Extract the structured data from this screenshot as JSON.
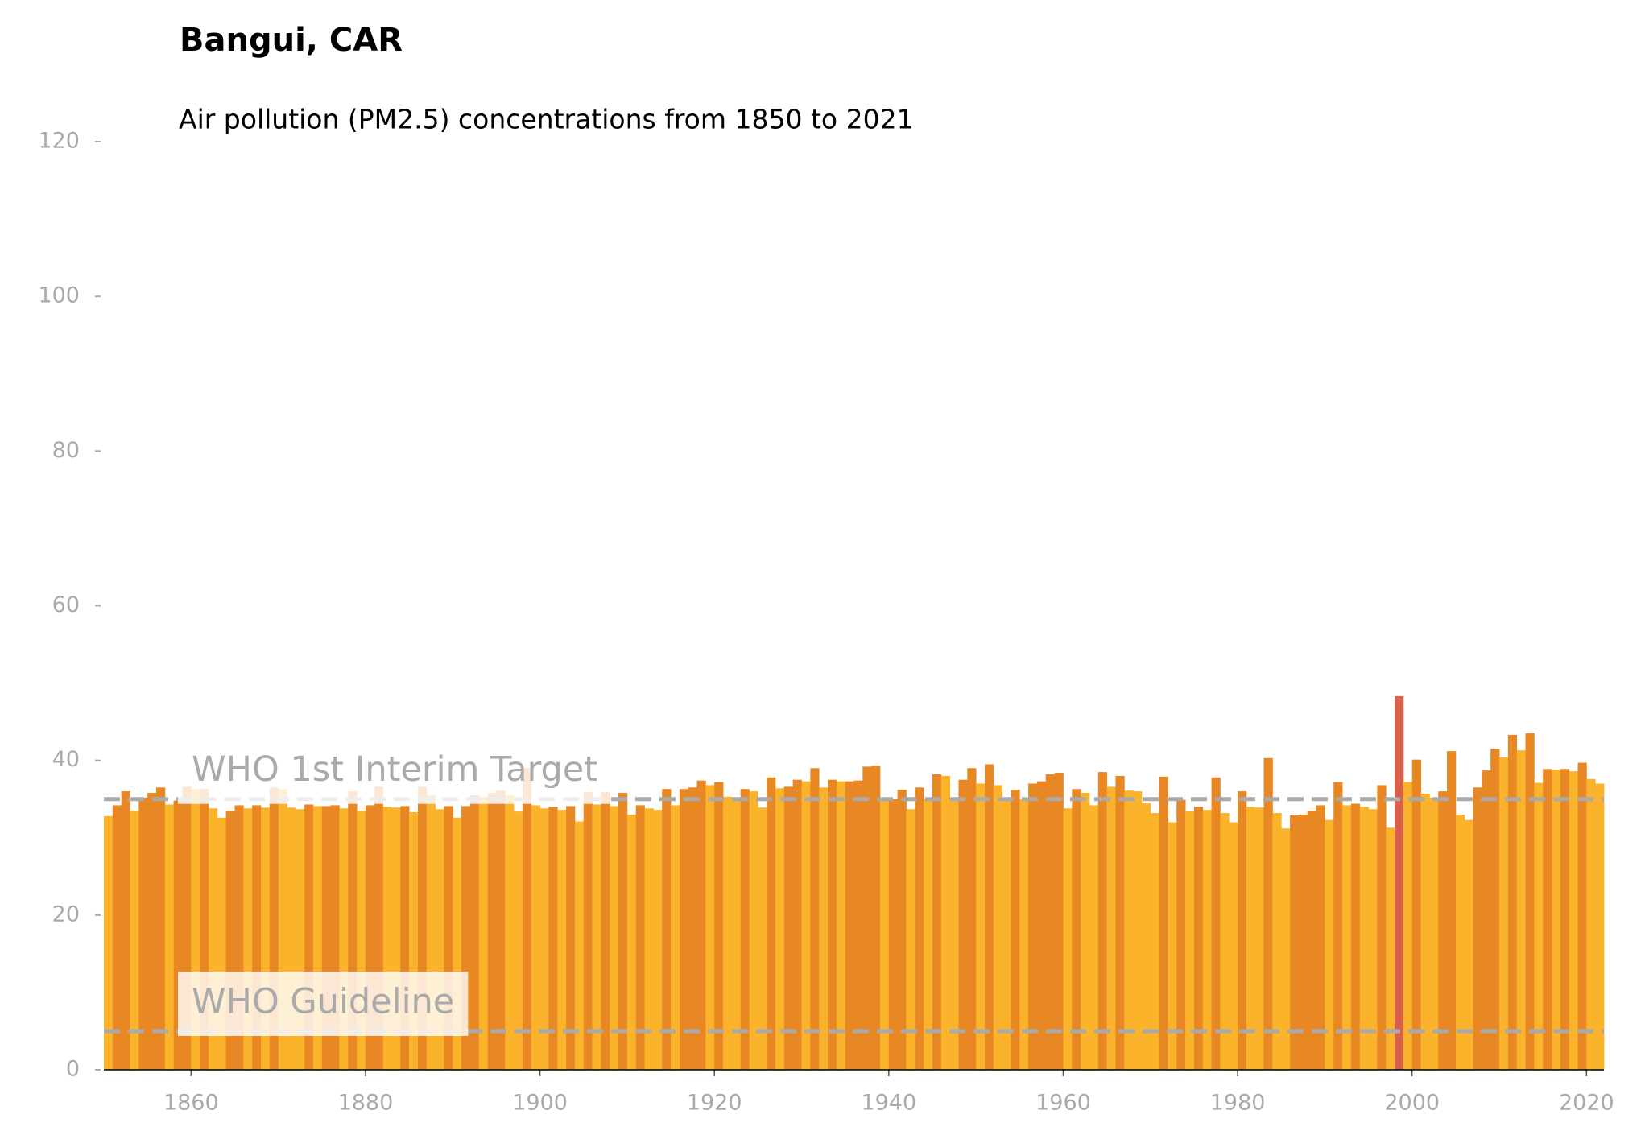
{
  "chart_data": {
    "type": "bar",
    "title": "Bangui, CAR",
    "subtitle": "Air pollution (PM2.5) concentrations from 1850 to 2021",
    "x": [
      1850,
      1851,
      1852,
      1853,
      1854,
      1855,
      1856,
      1857,
      1858,
      1859,
      1860,
      1861,
      1862,
      1863,
      1864,
      1865,
      1866,
      1867,
      1868,
      1869,
      1870,
      1871,
      1872,
      1873,
      1874,
      1875,
      1876,
      1877,
      1878,
      1879,
      1880,
      1881,
      1882,
      1883,
      1884,
      1885,
      1886,
      1887,
      1888,
      1889,
      1890,
      1891,
      1892,
      1893,
      1894,
      1895,
      1896,
      1897,
      1898,
      1899,
      1900,
      1901,
      1902,
      1903,
      1904,
      1905,
      1906,
      1907,
      1908,
      1909,
      1910,
      1911,
      1912,
      1913,
      1914,
      1915,
      1916,
      1917,
      1918,
      1919,
      1920,
      1921,
      1922,
      1923,
      1924,
      1925,
      1926,
      1927,
      1928,
      1929,
      1930,
      1931,
      1932,
      1933,
      1934,
      1935,
      1936,
      1937,
      1938,
      1939,
      1940,
      1941,
      1942,
      1943,
      1944,
      1945,
      1946,
      1947,
      1948,
      1949,
      1950,
      1951,
      1952,
      1953,
      1954,
      1955,
      1956,
      1957,
      1958,
      1959,
      1960,
      1961,
      1962,
      1963,
      1964,
      1965,
      1966,
      1967,
      1968,
      1969,
      1970,
      1971,
      1972,
      1973,
      1974,
      1975,
      1976,
      1977,
      1978,
      1979,
      1980,
      1981,
      1982,
      1983,
      1984,
      1985,
      1986,
      1987,
      1988,
      1989,
      1990,
      1991,
      1992,
      1993,
      1994,
      1995,
      1996,
      1997,
      1998,
      1999,
      2000,
      2001,
      2002,
      2003,
      2004,
      2005,
      2006,
      2007,
      2008,
      2009,
      2010,
      2011,
      2012,
      2013,
      2014,
      2015,
      2016,
      2017,
      2018,
      2019,
      2020,
      2021
    ],
    "values": [
      32.8,
      34.2,
      36,
      33.5,
      35.2,
      35.8,
      36.5,
      34.3,
      34.8,
      36.6,
      36.3,
      36.3,
      33.8,
      32.6,
      33.5,
      34.2,
      33.8,
      34.2,
      33.9,
      36.5,
      36.3,
      33.9,
      33.7,
      34.3,
      34.1,
      34.1,
      34.2,
      33.8,
      36,
      33.5,
      34.2,
      36.6,
      34,
      33.9,
      34.1,
      33.3,
      36.6,
      35.5,
      33.7,
      34.1,
      32.6,
      34.1,
      35.5,
      35.3,
      35.8,
      36.1,
      35.5,
      33.4,
      39,
      34.2,
      33.8,
      34,
      33.6,
      34.1,
      32.1,
      35.9,
      34.3,
      35.9,
      34.1,
      35.8,
      33,
      34.2,
      33.8,
      33.6,
      36.3,
      34.2,
      36.3,
      36.5,
      37.4,
      36.8,
      37.2,
      35.3,
      35,
      36.3,
      36,
      33.9,
      37.8,
      36.4,
      36.6,
      37.5,
      37.3,
      39,
      36.5,
      37.5,
      37.3,
      37.3,
      37.4,
      39.2,
      39.3,
      35,
      35,
      36.2,
      33.7,
      36.5,
      35,
      38.2,
      38,
      35,
      37.5,
      39,
      37,
      39.5,
      36.8,
      34.9,
      36.2,
      35,
      37,
      37.3,
      38.2,
      38.4,
      33.8,
      36.3,
      35.8,
      34.2,
      38.5,
      36.6,
      38,
      36.1,
      36,
      34.5,
      33.2,
      37.9,
      32,
      34.9,
      33.4,
      34,
      33.6,
      37.8,
      33.2,
      32,
      36,
      34,
      33.9,
      40.3,
      33.2,
      31.2,
      32.9,
      33,
      33.5,
      34.2,
      32.3,
      37.2,
      34.2,
      34.4,
      34,
      33.7,
      36.8,
      31.3,
      48.3,
      37.2,
      40.1,
      35.7,
      35.2,
      36,
      41.2,
      33,
      32.3,
      36.5,
      38.7,
      41.5,
      40.4,
      43.3,
      41.3,
      43.5,
      37.1,
      38.9,
      38.8,
      38.9,
      38.6,
      39.7,
      37.6,
      37
    ],
    "color_up": "#e88824",
    "color_down": "#fbb32b",
    "highlight_color": "#d9614c",
    "xlim": [
      1850,
      2022
    ],
    "xticks": [
      1860,
      1880,
      1900,
      1920,
      1940,
      1960,
      1980,
      2000,
      2020
    ],
    "ylim": [
      0,
      120
    ],
    "yticks": [
      0,
      20,
      40,
      60,
      80,
      100,
      120
    ],
    "reference_lines": [
      {
        "value": 35,
        "label": "WHO 1st Interim Target"
      },
      {
        "value": 5,
        "label": "WHO Guideline"
      }
    ],
    "reference_color": "#aaaaaa"
  }
}
